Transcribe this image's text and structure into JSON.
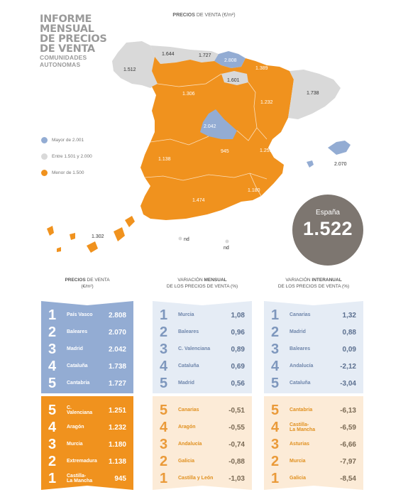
{
  "header": {
    "title_lines": [
      "INFORME",
      "MENSUAL",
      "DE PRECIOS",
      "DE VENTA"
    ],
    "subtitle_lines": [
      "COMUNIDADES",
      "AUTONOMAS"
    ],
    "map_heading_bold": "PRECIOS",
    "map_heading_rest": " DE VENTA (€/m²)"
  },
  "colors": {
    "blue": "#93acd3",
    "grey": "#d9d9d9",
    "orange": "#f0921e",
    "dark_grey": "#7d7670"
  },
  "map": {
    "labels": {
      "galicia": "1.512",
      "asturias": "1.644",
      "cantabria": "1.727",
      "pais_vasco": "2.808",
      "navarra": "1.389",
      "la_rioja": "1.601",
      "castilla_leon": "1.306",
      "aragon": "1.232",
      "cataluna": "1.738",
      "madrid": "2.042",
      "castilla_la_mancha": "945",
      "c_valenciana": "1.251",
      "extremadura": "1.138",
      "murcia": "1.180",
      "andalucia": "1.474",
      "baleares": "2.070",
      "canarias": "1.302",
      "ceuta": "nd",
      "melilla": "nd"
    }
  },
  "legend": [
    {
      "label": "Mayor de 2.001",
      "color": "#93acd3"
    },
    {
      "label": "Entre 1.501 y 2.000",
      "color": "#d9d9d9"
    },
    {
      "label": "Menor de 1.500",
      "color": "#f0921e"
    }
  ],
  "spain": {
    "name": "España",
    "value": "1.522"
  },
  "columns": [
    {
      "head_bold": "PRECIOS",
      "head_rest": " DE VENTA",
      "head_line2": "(€/m²)",
      "top": [
        {
          "rank": "1",
          "name": "País Vasco",
          "value": "2.808"
        },
        {
          "rank": "2",
          "name": "Baleares",
          "value": "2.070"
        },
        {
          "rank": "3",
          "name": "Madrid",
          "value": "2.042"
        },
        {
          "rank": "4",
          "name": "Cataluña",
          "value": "1.738"
        },
        {
          "rank": "5",
          "name": "Cantabria",
          "value": "1.727"
        }
      ],
      "bottom": [
        {
          "rank": "5",
          "name": "C. Valenciana",
          "value": "1.251"
        },
        {
          "rank": "4",
          "name": "Aragón",
          "value": "1.232"
        },
        {
          "rank": "3",
          "name": "Murcia",
          "value": "1.180"
        },
        {
          "rank": "2",
          "name": "Extremadura",
          "value": "1.138"
        },
        {
          "rank": "1",
          "name": "Castilla-\nLa Mancha",
          "value": "945"
        }
      ]
    },
    {
      "head_pre": "VARIACIÓN ",
      "head_bold": "MENSUAL",
      "head_line2": "DE LOS PRECIOS DE VENTA (%)",
      "top": [
        {
          "rank": "1",
          "name": "Murcia",
          "value": "1,08"
        },
        {
          "rank": "2",
          "name": "Baleares",
          "value": "0,96"
        },
        {
          "rank": "3",
          "name": "C. Valenciana",
          "value": "0,89"
        },
        {
          "rank": "4",
          "name": "Cataluña",
          "value": "0,69"
        },
        {
          "rank": "5",
          "name": "Madrid",
          "value": "0,56"
        }
      ],
      "bottom": [
        {
          "rank": "5",
          "name": "Canarias",
          "value": "-0,51"
        },
        {
          "rank": "4",
          "name": "Aragón",
          "value": "-0,55"
        },
        {
          "rank": "3",
          "name": "Andalucía",
          "value": "-0,74"
        },
        {
          "rank": "2",
          "name": "Galicia",
          "value": "-0,88"
        },
        {
          "rank": "1",
          "name": "Castilla y León",
          "value": "-1,03"
        }
      ]
    },
    {
      "head_pre": "VARIACIÓN ",
      "head_bold": "INTERANUAL",
      "head_line2": "DE LOS PRECIOS DE VENTA (%)",
      "top": [
        {
          "rank": "1",
          "name": "Canarias",
          "value": "1,32"
        },
        {
          "rank": "2",
          "name": "Madrid",
          "value": "0,88"
        },
        {
          "rank": "3",
          "name": "Baleares",
          "value": "0,09"
        },
        {
          "rank": "4",
          "name": "Andalucía",
          "value": "-2,12"
        },
        {
          "rank": "5",
          "name": "Cataluña",
          "value": "-3,04"
        }
      ],
      "bottom": [
        {
          "rank": "5",
          "name": "Cantabria",
          "value": "-6,13"
        },
        {
          "rank": "4",
          "name": "Castilla-\nLa Mancha",
          "value": "-6,59"
        },
        {
          "rank": "3",
          "name": "Asturias",
          "value": "-6,66"
        },
        {
          "rank": "2",
          "name": "Murcia",
          "value": "-7,97"
        },
        {
          "rank": "1",
          "name": "Galicia",
          "value": "-8,54"
        }
      ]
    }
  ]
}
